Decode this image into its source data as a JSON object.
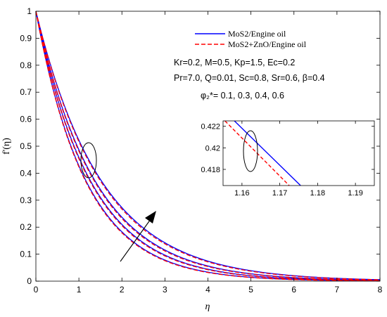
{
  "chart_data": {
    "type": "line",
    "xlabel": "η",
    "ylabel": "f'(η)",
    "xlim": [
      0,
      8
    ],
    "ylim": [
      0,
      1
    ],
    "x_ticks": [
      "0",
      "1",
      "2",
      "3",
      "4",
      "5",
      "6",
      "7",
      "8"
    ],
    "y_ticks": [
      "0",
      "0.1",
      "0.2",
      "0.3",
      "0.4",
      "0.5",
      "0.6",
      "0.7",
      "0.8",
      "0.9",
      "1"
    ],
    "legend": {
      "placement": "top-right",
      "entries": [
        {
          "label": "MoS2/Engine oil",
          "color": "#0000ff",
          "dash": "solid"
        },
        {
          "label": "MoS2+ZnO/Engine oil",
          "color": "#ff0000",
          "dash": "dashed"
        }
      ]
    },
    "annotations": {
      "params_line1": "Kr=0.2, M=0.5, Kp=1.5, Ec=0.2",
      "params_line2": "Pr=7.0, Q=0.01, Sc=0.8, Sr=0.6, β=0.4",
      "phi_label": "φ₂*= 0.1, 0.3, 0.4, 0.6"
    },
    "series": [
      {
        "phi2": 0.1,
        "fluid": "MoS2/Engine oil",
        "decay_rate": 0.85
      },
      {
        "phi2": 0.3,
        "fluid": "MoS2/Engine oil",
        "decay_rate": 0.78
      },
      {
        "phi2": 0.4,
        "fluid": "MoS2/Engine oil",
        "decay_rate": 0.72
      },
      {
        "phi2": 0.6,
        "fluid": "MoS2/Engine oil",
        "decay_rate": 0.65
      },
      {
        "phi2": 0.1,
        "fluid": "MoS2+ZnO/Engine oil",
        "decay_rate": 0.86
      },
      {
        "phi2": 0.3,
        "fluid": "MoS2+ZnO/Engine oil",
        "decay_rate": 0.79
      },
      {
        "phi2": 0.4,
        "fluid": "MoS2+ZnO/Engine oil",
        "decay_rate": 0.73
      },
      {
        "phi2": 0.6,
        "fluid": "MoS2+ZnO/Engine oil",
        "decay_rate": 0.66
      }
    ],
    "inset": {
      "xlim": [
        1.155,
        1.195
      ],
      "ylim": [
        0.4165,
        0.4225
      ],
      "x_ticks": [
        "1.16",
        "1.17",
        "1.18",
        "1.19"
      ],
      "y_ticks": [
        "0.418",
        "0.42",
        "0.422"
      ],
      "lines": [
        {
          "fluid": "MoS2/Engine oil",
          "color": "#0000ff",
          "dash": "solid",
          "points": [
            [
              1.158,
              0.4225
            ],
            [
              1.1755,
              0.4165
            ]
          ]
        },
        {
          "fluid": "MoS2+ZnO/Engine oil",
          "color": "#ff0000",
          "dash": "dashed",
          "points": [
            [
              1.1555,
              0.4225
            ],
            [
              1.1725,
              0.4165
            ]
          ]
        }
      ]
    }
  }
}
